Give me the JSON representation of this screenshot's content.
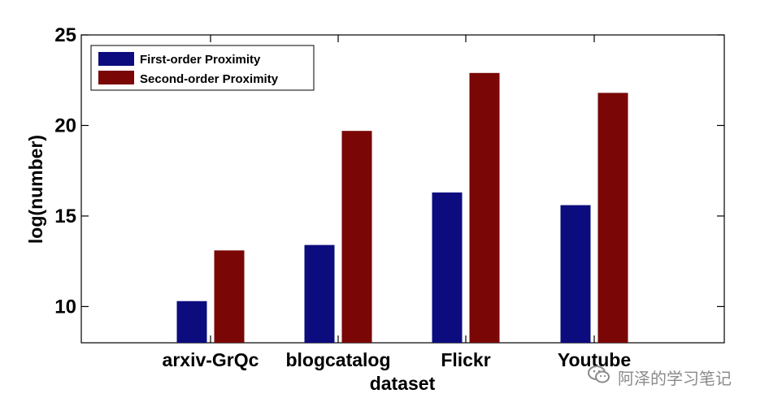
{
  "chart_data": {
    "type": "bar",
    "categories": [
      "arxiv-GrQc",
      "blogcatalog",
      "Flickr",
      "Youtube"
    ],
    "series": [
      {
        "name": "First-order Proximity",
        "values": [
          10.3,
          13.4,
          16.3,
          15.6
        ],
        "color": "#0c0c7e"
      },
      {
        "name": "Second-order Proximity",
        "values": [
          13.1,
          19.7,
          22.9,
          21.8
        ],
        "color": "#7a0606"
      }
    ],
    "xlabel": "dataset",
    "ylabel": "log(number)",
    "ylim": [
      8,
      25
    ],
    "yticks": [
      10,
      15,
      20,
      25
    ],
    "grid": false,
    "legend_position": "top-left"
  },
  "watermark": {
    "text": "阿泽的学习笔记",
    "icon": "wechat-icon"
  }
}
